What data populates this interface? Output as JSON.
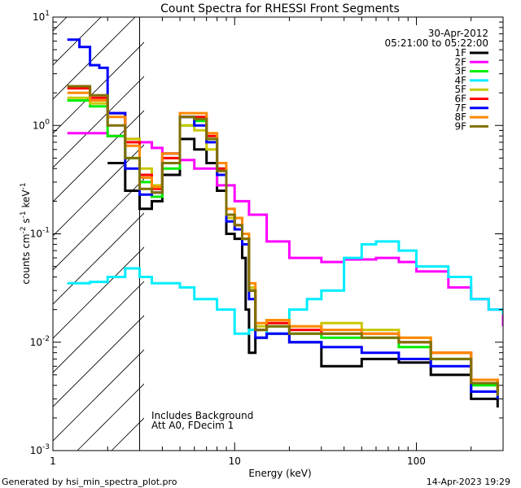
{
  "chart_data": {
    "type": "line",
    "title": "Count Spectra for RHESSI Front Segments",
    "date": "30-Apr-2012",
    "time_range": "05:21:00 to 05:22:00",
    "xlabel": "Energy (keV)",
    "ylabel": "counts cm-2 s-1 keV-1",
    "xscale": "log",
    "yscale": "log",
    "xlim": [
      1,
      300
    ],
    "ylim": [
      0.001,
      10
    ],
    "x_ticks": [
      "1",
      "10",
      "100"
    ],
    "y_ticks": [
      "10^-3",
      "10^-2",
      "10^-1",
      "10^0",
      "10^1"
    ],
    "hatched_region_max_keV": 3,
    "annotations": [
      "Includes Background",
      "Att A0, FDecim 1"
    ],
    "footer_left": "Generated by hsi_min_spectra_plot.pro",
    "footer_right": "14-Apr-2023 19:29",
    "series": [
      {
        "name": "1F",
        "color": "#000000",
        "x": [
          2,
          2.5,
          3,
          3.5,
          4,
          5,
          6,
          7,
          8,
          9,
          10,
          11,
          11.5,
          12,
          13,
          15,
          20,
          30,
          50,
          80,
          120,
          200,
          280
        ],
        "y": [
          0.45,
          0.25,
          0.17,
          0.2,
          0.35,
          0.75,
          0.6,
          0.45,
          0.25,
          0.1,
          0.09,
          0.06,
          0.02,
          0.008,
          0.011,
          0.012,
          0.01,
          0.006,
          0.007,
          0.0065,
          0.005,
          0.003,
          0.0025
        ]
      },
      {
        "name": "2F",
        "color": "#ff00ff",
        "x": [
          1.2,
          1.6,
          2,
          2.5,
          3,
          3.5,
          4,
          5,
          6,
          8,
          10,
          12,
          15,
          20,
          30,
          40,
          60,
          80,
          100,
          150,
          200,
          250,
          300
        ],
        "y": [
          0.85,
          0.85,
          0.8,
          0.75,
          0.7,
          0.62,
          0.55,
          0.48,
          0.4,
          0.28,
          0.2,
          0.15,
          0.085,
          0.06,
          0.055,
          0.058,
          0.06,
          0.055,
          0.045,
          0.032,
          0.025,
          0.02,
          0.014
        ]
      },
      {
        "name": "3F",
        "color": "#00ee00",
        "x": [
          1.2,
          1.6,
          2,
          2.5,
          3,
          3.5,
          4,
          5,
          6,
          7,
          8,
          9,
          10,
          11,
          12,
          13,
          15,
          20,
          30,
          50,
          80,
          120,
          200,
          280
        ],
        "y": [
          1.7,
          1.5,
          0.8,
          0.5,
          0.3,
          0.22,
          0.4,
          1.0,
          1.1,
          0.75,
          0.4,
          0.15,
          0.12,
          0.09,
          0.03,
          0.013,
          0.014,
          0.012,
          0.011,
          0.011,
          0.009,
          0.007,
          0.004,
          0.003
        ]
      },
      {
        "name": "4F",
        "color": "#00eeff",
        "x": [
          1.2,
          1.6,
          2,
          2.5,
          3,
          3.5,
          4,
          5,
          6,
          8,
          10,
          12,
          15,
          20,
          25,
          30,
          40,
          50,
          60,
          80,
          100,
          150,
          200,
          250,
          300
        ],
        "y": [
          0.035,
          0.036,
          0.04,
          0.048,
          0.04,
          0.035,
          0.035,
          0.032,
          0.025,
          0.02,
          0.012,
          0.013,
          0.012,
          0.02,
          0.025,
          0.03,
          0.06,
          0.08,
          0.085,
          0.07,
          0.05,
          0.04,
          0.025,
          0.02,
          0.018
        ]
      },
      {
        "name": "5F",
        "color": "#c8c800",
        "x": [
          1.2,
          1.6,
          2,
          2.5,
          3,
          3.5,
          4,
          5,
          6,
          7,
          8,
          9,
          10,
          11,
          12,
          13,
          15,
          20,
          30,
          50,
          80,
          120,
          200,
          280
        ],
        "y": [
          1.8,
          1.6,
          1.3,
          0.75,
          0.4,
          0.28,
          0.5,
          1.0,
          0.9,
          0.6,
          0.35,
          0.14,
          0.12,
          0.09,
          0.032,
          0.014,
          0.016,
          0.014,
          0.015,
          0.013,
          0.011,
          0.008,
          0.0045,
          0.0035
        ]
      },
      {
        "name": "6F",
        "color": "#ff0000",
        "x": [
          1.2,
          1.6,
          2,
          2.5,
          3,
          3.5,
          4,
          5,
          6,
          7,
          8,
          9,
          10,
          11,
          12,
          13,
          15,
          20,
          30,
          50,
          80,
          120,
          200,
          280
        ],
        "y": [
          2.2,
          1.8,
          1.3,
          0.7,
          0.35,
          0.26,
          0.5,
          1.2,
          1.2,
          0.8,
          0.4,
          0.15,
          0.12,
          0.09,
          0.03,
          0.013,
          0.015,
          0.013,
          0.012,
          0.012,
          0.01,
          0.008,
          0.0045,
          0.0035
        ]
      },
      {
        "name": "7F",
        "color": "#0000ff",
        "x": [
          1.2,
          1.4,
          1.6,
          1.8,
          2,
          2.5,
          3,
          3.5,
          4,
          5,
          6,
          7,
          8,
          9,
          10,
          11,
          12,
          13,
          15,
          20,
          30,
          50,
          80,
          120,
          200,
          280
        ],
        "y": [
          6.2,
          5.3,
          3.6,
          3.4,
          1.3,
          0.4,
          0.23,
          0.24,
          0.55,
          1.2,
          1.0,
          0.7,
          0.35,
          0.13,
          0.11,
          0.08,
          0.025,
          0.011,
          0.012,
          0.01,
          0.009,
          0.008,
          0.007,
          0.006,
          0.0035,
          0.003
        ]
      },
      {
        "name": "8F",
        "color": "#ff8800",
        "x": [
          1.2,
          1.6,
          2,
          2.5,
          3,
          3.5,
          4,
          5,
          6,
          7,
          8,
          9,
          10,
          11,
          12,
          13,
          15,
          20,
          30,
          50,
          80,
          120,
          200,
          280
        ],
        "y": [
          2.0,
          1.7,
          1.2,
          0.65,
          0.33,
          0.27,
          0.55,
          1.3,
          1.3,
          0.85,
          0.45,
          0.17,
          0.14,
          0.1,
          0.035,
          0.015,
          0.016,
          0.014,
          0.013,
          0.012,
          0.011,
          0.008,
          0.0045,
          0.0035
        ]
      },
      {
        "name": "9F",
        "color": "#807000",
        "x": [
          1.2,
          1.6,
          2,
          2.5,
          3,
          3.5,
          4,
          5,
          6,
          7,
          8,
          9,
          10,
          11,
          12,
          13,
          15,
          20,
          30,
          50,
          80,
          120,
          200,
          280
        ],
        "y": [
          2.3,
          1.9,
          1.0,
          0.5,
          0.26,
          0.24,
          0.45,
          1.2,
          1.15,
          0.75,
          0.38,
          0.15,
          0.12,
          0.09,
          0.03,
          0.013,
          0.014,
          0.012,
          0.012,
          0.011,
          0.01,
          0.007,
          0.0042,
          0.0032
        ]
      }
    ]
  }
}
